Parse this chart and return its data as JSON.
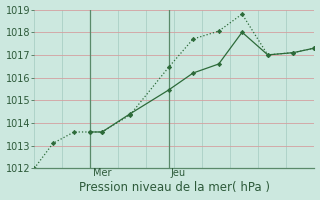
{
  "title": "Pression niveau de la mer( hPa )",
  "bg_color": "#cce8df",
  "grid_color": "#aacfc5",
  "line_color": "#2d6b3a",
  "vline_color": "#5a8a6a",
  "ylim": [
    1012,
    1019
  ],
  "yticks": [
    1012,
    1013,
    1014,
    1015,
    1016,
    1017,
    1018,
    1019
  ],
  "xlim": [
    0,
    240
  ],
  "vline_positions": [
    48,
    115
  ],
  "vline_labels": [
    "Mer",
    "Jeu"
  ],
  "series1_x": [
    0,
    16,
    34,
    48,
    58,
    82,
    115,
    136,
    158,
    178,
    200,
    222,
    240
  ],
  "series1_y": [
    1012.0,
    1013.1,
    1013.6,
    1013.6,
    1013.6,
    1014.35,
    1016.45,
    1017.7,
    1018.05,
    1018.8,
    1017.0,
    1017.1,
    1017.3
  ],
  "series2_x": [
    48,
    58,
    82,
    115,
    136,
    158,
    178,
    200,
    222,
    240
  ],
  "series2_y": [
    1013.6,
    1013.6,
    1014.4,
    1015.45,
    1016.2,
    1016.6,
    1018.0,
    1017.0,
    1017.1,
    1017.3
  ],
  "tick_fontsize": 7,
  "label_fontsize": 8.5,
  "xlabel_color": "#2d5a3a",
  "tick_color": "#2d5a3a"
}
